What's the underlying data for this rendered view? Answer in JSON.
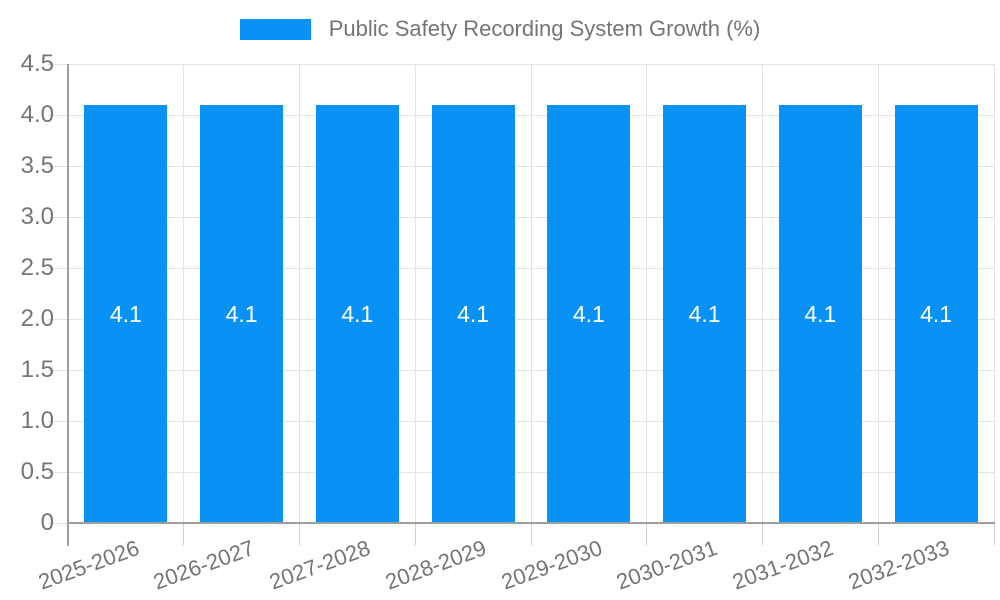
{
  "legend": {
    "label": "Public Safety Recording System Growth (%)"
  },
  "chart_data": {
    "type": "bar",
    "title": "Public Safety Recording System Growth (%)",
    "xlabel": "",
    "ylabel": "",
    "categories": [
      "2025-2026",
      "2026-2027",
      "2027-2028",
      "2028-2029",
      "2029-2030",
      "2030-2031",
      "2031-2032",
      "2032-2033"
    ],
    "series": [
      {
        "name": "Public Safety Recording System Growth (%)",
        "values": [
          4.1,
          4.1,
          4.1,
          4.1,
          4.1,
          4.1,
          4.1,
          4.1
        ],
        "bar_labels": [
          "4.1",
          "4.1",
          "4.1",
          "4.1",
          "4.1",
          "4.1",
          "4.1",
          "4.1"
        ],
        "color": "#0892f5"
      }
    ],
    "ylim": [
      0,
      4.5
    ],
    "yticks": [
      {
        "value": 0,
        "label": "0"
      },
      {
        "value": 0.5,
        "label": "0.5"
      },
      {
        "value": 1,
        "label": "1.0"
      },
      {
        "value": 1.5,
        "label": "1.5"
      },
      {
        "value": 2,
        "label": "2.0"
      },
      {
        "value": 2.5,
        "label": "2.5"
      },
      {
        "value": 3,
        "label": "3.0"
      },
      {
        "value": 3.5,
        "label": "3.5"
      },
      {
        "value": 4,
        "label": "4.0"
      },
      {
        "value": 4.5,
        "label": "4.5"
      }
    ],
    "grid": true,
    "legend_position": "top",
    "colors": {
      "bar": "#0892f5",
      "text": "#757575",
      "value_label": "#ffffff",
      "gridline": "#e3e3e3",
      "axis": "#9e9e9e",
      "tick": "#cfcfcf",
      "background": "#ffffff"
    }
  }
}
